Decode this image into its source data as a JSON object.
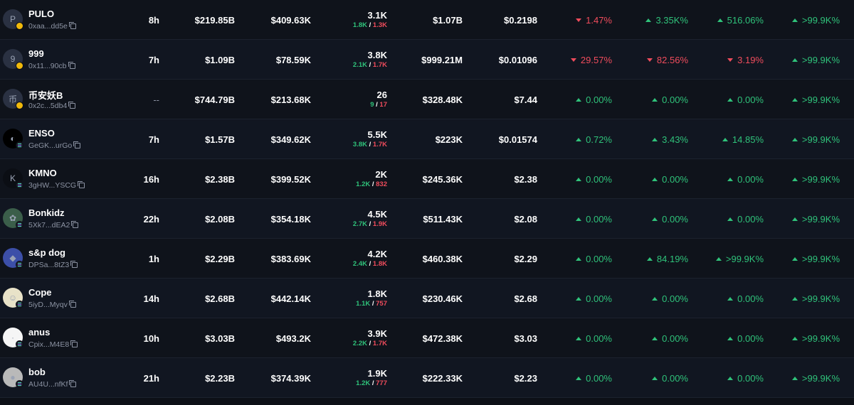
{
  "colors": {
    "background": "#0d1017",
    "positive": "#2fc27a",
    "negative": "#f04c5c",
    "muted": "#8c93a3"
  },
  "rows": [
    {
      "avatar": "P",
      "avatar_bg": "#2a3142",
      "chain": "bnb",
      "name": "PULO",
      "address": "0xaa...dd5e",
      "age": "8h",
      "liquidity": "$219.85B",
      "market_cap": "$409.63K",
      "txns": "3.1K",
      "buys": "1.8K",
      "sells": "1.3K",
      "volume": "$1.07B",
      "price": "$0.2198",
      "chg": [
        {
          "dir": "down",
          "v": "1.47%"
        },
        {
          "dir": "up",
          "v": "3.35K%"
        },
        {
          "dir": "up",
          "v": "516.06%"
        },
        {
          "dir": "up",
          "v": ">99.9K%"
        }
      ]
    },
    {
      "avatar": "9",
      "avatar_bg": "#2a3142",
      "chain": "bnb",
      "name": "999",
      "address": "0x11...90cb",
      "age": "7h",
      "liquidity": "$1.09B",
      "market_cap": "$78.59K",
      "txns": "3.8K",
      "buys": "2.1K",
      "sells": "1.7K",
      "volume": "$999.21M",
      "price": "$0.01096",
      "chg": [
        {
          "dir": "down",
          "v": "29.57%"
        },
        {
          "dir": "down",
          "v": "82.56%"
        },
        {
          "dir": "down",
          "v": "3.19%"
        },
        {
          "dir": "up",
          "v": ">99.9K%"
        }
      ]
    },
    {
      "avatar": "币",
      "avatar_bg": "#2a3142",
      "chain": "bnb",
      "name": "币安妖B",
      "address": "0x2c...5db4",
      "age": "--",
      "liquidity": "$744.79B",
      "market_cap": "$213.68K",
      "txns": "26",
      "buys": "9",
      "sells": "17",
      "volume": "$328.48K",
      "price": "$7.44",
      "chg": [
        {
          "dir": "up",
          "v": "0.00%"
        },
        {
          "dir": "up",
          "v": "0.00%"
        },
        {
          "dir": "up",
          "v": "0.00%"
        },
        {
          "dir": "up",
          "v": ">99.9K%"
        }
      ]
    },
    {
      "avatar": "◐",
      "avatar_bg": "#000000",
      "chain": "sol",
      "name": "ENSO",
      "address": "GeGK...urGo",
      "age": "7h",
      "liquidity": "$1.57B",
      "market_cap": "$349.62K",
      "txns": "5.5K",
      "buys": "3.8K",
      "sells": "1.7K",
      "volume": "$223K",
      "price": "$0.01574",
      "chg": [
        {
          "dir": "up",
          "v": "0.72%"
        },
        {
          "dir": "up",
          "v": "3.43%"
        },
        {
          "dir": "up",
          "v": "14.85%"
        },
        {
          "dir": "up",
          "v": ">99.9K%"
        }
      ]
    },
    {
      "avatar": "K",
      "avatar_bg": "#0b0e14",
      "chain": "sol",
      "name": "KMNO",
      "address": "3gHW...YSCG",
      "age": "16h",
      "liquidity": "$2.38B",
      "market_cap": "$399.52K",
      "txns": "2K",
      "buys": "1.2K",
      "sells": "832",
      "volume": "$245.36K",
      "price": "$2.38",
      "chg": [
        {
          "dir": "up",
          "v": "0.00%"
        },
        {
          "dir": "up",
          "v": "0.00%"
        },
        {
          "dir": "up",
          "v": "0.00%"
        },
        {
          "dir": "up",
          "v": ">99.9K%"
        }
      ]
    },
    {
      "avatar": "✿",
      "avatar_bg": "#3b5e4a",
      "chain": "sol",
      "name": "Bonkidz",
      "address": "5Xk7...dEA2",
      "age": "22h",
      "liquidity": "$2.08B",
      "market_cap": "$354.18K",
      "txns": "4.5K",
      "buys": "2.7K",
      "sells": "1.9K",
      "volume": "$511.43K",
      "price": "$2.08",
      "chg": [
        {
          "dir": "up",
          "v": "0.00%"
        },
        {
          "dir": "up",
          "v": "0.00%"
        },
        {
          "dir": "up",
          "v": "0.00%"
        },
        {
          "dir": "up",
          "v": ">99.9K%"
        }
      ]
    },
    {
      "avatar": "◆",
      "avatar_bg": "#3c4fa8",
      "chain": "sol",
      "name": "s&p dog",
      "address": "DPSa...8tZ3",
      "age": "1h",
      "liquidity": "$2.29B",
      "market_cap": "$383.69K",
      "txns": "4.2K",
      "buys": "2.4K",
      "sells": "1.8K",
      "volume": "$460.38K",
      "price": "$2.29",
      "chg": [
        {
          "dir": "up",
          "v": "0.00%"
        },
        {
          "dir": "up",
          "v": "84.19%"
        },
        {
          "dir": "up",
          "v": ">99.9K%"
        },
        {
          "dir": "up",
          "v": ">99.9K%"
        }
      ]
    },
    {
      "avatar": "☺",
      "avatar_bg": "#e8e2c8",
      "chain": "sol",
      "name": "Cope",
      "address": "5iyD...Myqv",
      "age": "14h",
      "liquidity": "$2.68B",
      "market_cap": "$442.14K",
      "txns": "1.8K",
      "buys": "1.1K",
      "sells": "757",
      "volume": "$230.46K",
      "price": "$2.68",
      "chg": [
        {
          "dir": "up",
          "v": "0.00%"
        },
        {
          "dir": "up",
          "v": "0.00%"
        },
        {
          "dir": "up",
          "v": "0.00%"
        },
        {
          "dir": "up",
          "v": ">99.9K%"
        }
      ]
    },
    {
      "avatar": "·",
      "avatar_bg": "#f5f5f5",
      "chain": "sol",
      "name": "anus",
      "address": "Cpix...M4E8",
      "age": "10h",
      "liquidity": "$3.03B",
      "market_cap": "$493.2K",
      "txns": "3.9K",
      "buys": "2.2K",
      "sells": "1.7K",
      "volume": "$472.38K",
      "price": "$3.03",
      "chg": [
        {
          "dir": "up",
          "v": "0.00%"
        },
        {
          "dir": "up",
          "v": "0.00%"
        },
        {
          "dir": "up",
          "v": "0.00%"
        },
        {
          "dir": "up",
          "v": ">99.9K%"
        }
      ]
    },
    {
      "avatar": "●",
      "avatar_bg": "#b9b9b9",
      "chain": "sol",
      "name": "bob",
      "address": "AU4U...nfKf",
      "age": "21h",
      "liquidity": "$2.23B",
      "market_cap": "$374.39K",
      "txns": "1.9K",
      "buys": "1.2K",
      "sells": "777",
      "volume": "$222.33K",
      "price": "$2.23",
      "chg": [
        {
          "dir": "up",
          "v": "0.00%"
        },
        {
          "dir": "up",
          "v": "0.00%"
        },
        {
          "dir": "up",
          "v": "0.00%"
        },
        {
          "dir": "up",
          "v": ">99.9K%"
        }
      ]
    }
  ]
}
